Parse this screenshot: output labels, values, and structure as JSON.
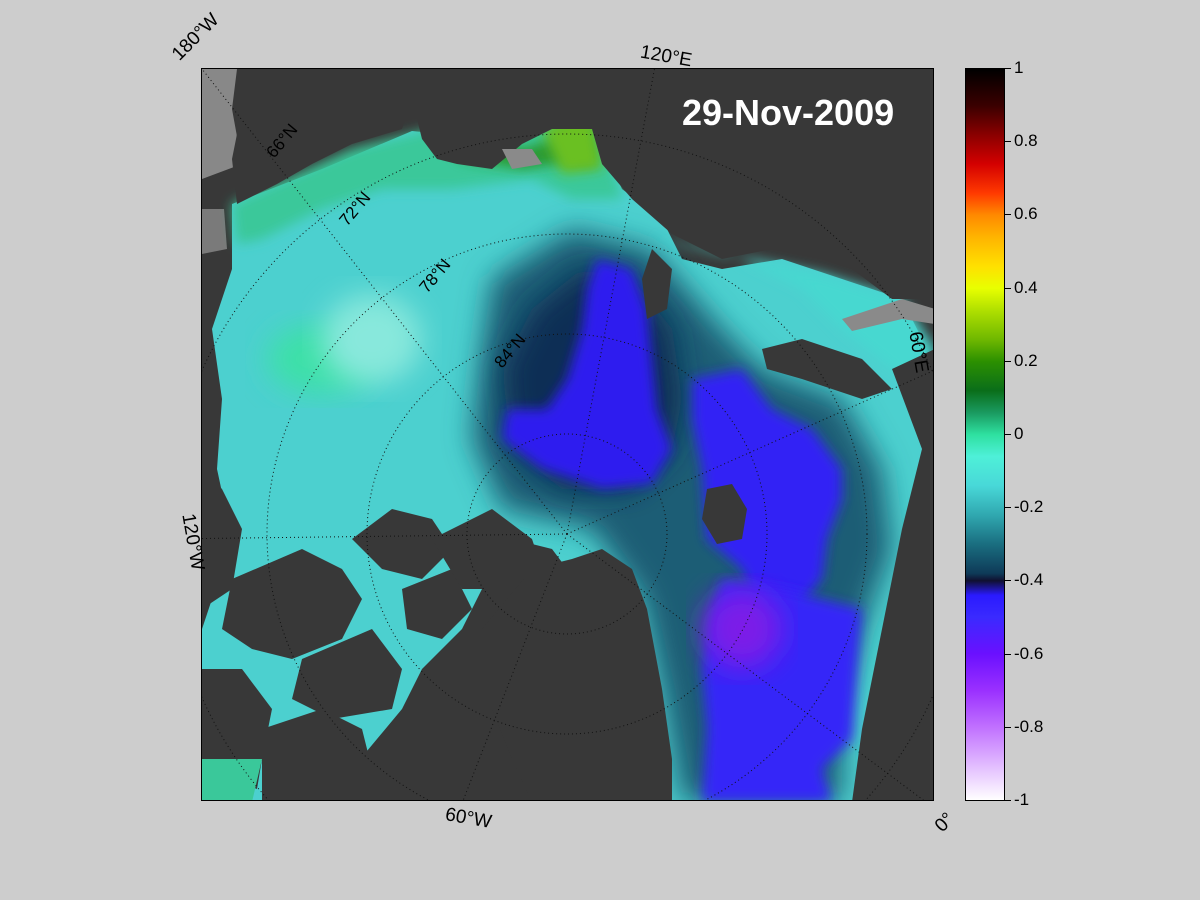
{
  "title": "29-Nov-2009",
  "longitude_labels": [
    "180°W",
    "120°E",
    "60°E",
    "0°",
    "60°W",
    "120°W"
  ],
  "latitude_labels": [
    "66°N",
    "72°N",
    "78°N",
    "84°N"
  ],
  "colorbar": {
    "ticks": [
      "1",
      "0.8",
      "0.6",
      "0.4",
      "0.2",
      "0",
      "-0.2",
      "-0.4",
      "-0.6",
      "-0.8",
      "-1"
    ],
    "range": [
      -1,
      1
    ]
  },
  "colors": {
    "land": "#383838",
    "background": "#cdcdcd",
    "no_data": "#888888"
  }
}
